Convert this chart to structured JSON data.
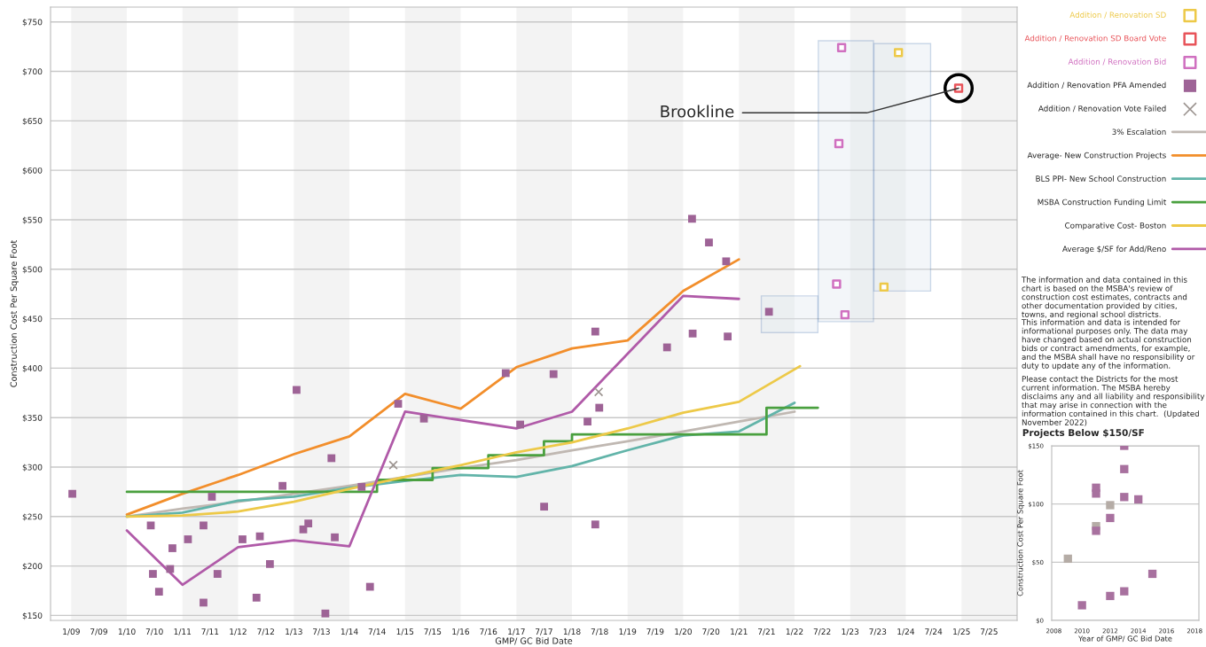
{
  "chart_data": [
    {
      "type": "scatter",
      "xlabel": "GMP/ GC Bid Date",
      "ylabel": "Construction Cost Per Square Foot",
      "xlim": [
        "2008-08-18",
        "2026-01"
      ],
      "ylim": [
        145,
        765
      ],
      "xticks": [
        {
          "value": "2009-01",
          "label": "1/09"
        },
        {
          "value": "2009-07",
          "label": "7/09"
        },
        {
          "value": "2010-01",
          "label": "1/10"
        },
        {
          "value": "2010-07",
          "label": "7/10"
        },
        {
          "value": "2011-01",
          "label": "1/11"
        },
        {
          "value": "2011-07",
          "label": "7/11"
        },
        {
          "value": "2012-01",
          "label": "1/12"
        },
        {
          "value": "2012-07",
          "label": "7/12"
        },
        {
          "value": "2013-01",
          "label": "1/13"
        },
        {
          "value": "2013-07",
          "label": "7/13"
        },
        {
          "value": "2014-01",
          "label": "1/14"
        },
        {
          "value": "2014-07",
          "label": "7/14"
        },
        {
          "value": "2015-01",
          "label": "1/15"
        },
        {
          "value": "2015-07",
          "label": "7/15"
        },
        {
          "value": "2016-01",
          "label": "1/16"
        },
        {
          "value": "2016-07",
          "label": "7/16"
        },
        {
          "value": "2017-01",
          "label": "1/17"
        },
        {
          "value": "2017-07",
          "label": "7/17"
        },
        {
          "value": "2018-01",
          "label": "1/18"
        },
        {
          "value": "2018-07",
          "label": "7/18"
        },
        {
          "value": "2019-01",
          "label": "1/19"
        },
        {
          "value": "2019-07",
          "label": "7/19"
        },
        {
          "value": "2020-01",
          "label": "1/20"
        },
        {
          "value": "2020-07",
          "label": "7/20"
        },
        {
          "value": "2021-01",
          "label": "1/21"
        },
        {
          "value": "2021-07",
          "label": "7/21"
        },
        {
          "value": "2022-01",
          "label": "1/22"
        },
        {
          "value": "2022-07",
          "label": "7/22"
        },
        {
          "value": "2023-01",
          "label": "1/23"
        },
        {
          "value": "2023-07",
          "label": "7/23"
        },
        {
          "value": "2024-01",
          "label": "1/24"
        },
        {
          "value": "2024-07",
          "label": "7/24"
        },
        {
          "value": "2025-01",
          "label": "1/25"
        },
        {
          "value": "2025-07",
          "label": "7/25"
        }
      ],
      "yticks": [
        {
          "value": 150,
          "label": "$150"
        },
        {
          "value": 200,
          "label": "$200"
        },
        {
          "value": 250,
          "label": "$250"
        },
        {
          "value": 300,
          "label": "$300"
        },
        {
          "value": 350,
          "label": "$350"
        },
        {
          "value": 400,
          "label": "$400"
        },
        {
          "value": 450,
          "label": "$450"
        },
        {
          "value": 500,
          "label": "$500"
        },
        {
          "value": 550,
          "label": "$550"
        },
        {
          "value": 600,
          "label": "$600"
        },
        {
          "value": 650,
          "label": "$650"
        },
        {
          "value": 700,
          "label": "$700"
        },
        {
          "value": 750,
          "label": "$750"
        }
      ],
      "grid": "y",
      "legend": "right",
      "bands": [
        {
          "axis": "x",
          "from": "2009-01",
          "to": "2010-01",
          "color": "#f3f3f3"
        },
        {
          "axis": "x",
          "from": "2011-01",
          "to": "2012-01",
          "color": "#f3f3f3"
        },
        {
          "axis": "x",
          "from": "2013-01",
          "to": "2014-01",
          "color": "#f3f3f3"
        },
        {
          "axis": "x",
          "from": "2015-01",
          "to": "2016-01",
          "color": "#f3f3f3"
        },
        {
          "axis": "x",
          "from": "2017-01",
          "to": "2018-01",
          "color": "#f3f3f3"
        },
        {
          "axis": "x",
          "from": "2019-01",
          "to": "2020-01",
          "color": "#f3f3f3"
        },
        {
          "axis": "x",
          "from": "2021-01",
          "to": "2022-01",
          "color": "#f3f3f3"
        },
        {
          "axis": "x",
          "from": "2023-01",
          "to": "2024-01",
          "color": "#f3f3f3"
        },
        {
          "axis": "x",
          "from": "2025-01",
          "to": "2026-01",
          "color": "#f3f3f3"
        }
      ],
      "series": [
        {
          "name": "Addition / Renovation SD",
          "marker": "square",
          "color": "#edc948",
          "x": [
            "2023-11-14",
            "2023-08-11"
          ],
          "values": [
            719,
            482
          ]
        },
        {
          "name": "Addition / Renovation SD Board Vote",
          "marker": "square",
          "color": "#e8545a",
          "x": [
            "2024-12-13"
          ],
          "values": [
            683
          ]
        },
        {
          "name": "Addition / Renovation Bid",
          "marker": "square",
          "color": "#d070c0",
          "x": [
            "2022-11-06",
            "2022-10-19",
            "2022-10-04",
            "2022-11-28"
          ],
          "values": [
            724,
            627,
            485,
            454
          ]
        },
        {
          "name": "Addition / Renovation PFA Amended",
          "marker": "square",
          "color": "#9e6396",
          "x": [
            "2009-01-08",
            "2010-06-07",
            "2010-06-21",
            "2010-07-31",
            "2010-10-12",
            "2010-10-27",
            "2011-02-06",
            "2011-05-19",
            "2011-05-19",
            "2011-07-13",
            "2011-08-19",
            "2012-01-30",
            "2012-05-01",
            "2012-05-23",
            "2012-07-28",
            "2012-10-19",
            "2013-01-19",
            "2013-03-04",
            "2013-04-06",
            "2013-07-27",
            "2013-09-05",
            "2013-09-27",
            "2014-03-22",
            "2014-05-16",
            "2014-11-17",
            "2015-05-05",
            "2016-10-23",
            "2017-01-26",
            "2017-07-02",
            "2017-09-02",
            "2018-04-13",
            "2018-06-03",
            "2018-06-29",
            "2018-06-03",
            "2019-09-17",
            "2020-02-28",
            "2020-06-18",
            "2020-10-09",
            "2020-03-03",
            "2020-10-19",
            "2021-07-17"
          ],
          "values": [
            273,
            241,
            192,
            174,
            197,
            218,
            227,
            241,
            163,
            270,
            192,
            227,
            168,
            230,
            202,
            281,
            378,
            237,
            243,
            152,
            309,
            229,
            280,
            179,
            364,
            349,
            395,
            343,
            260,
            394,
            346,
            437,
            360,
            242,
            421,
            551,
            527,
            508,
            435,
            432,
            457
          ]
        },
        {
          "name": "Addition / Renovation Vote Failed",
          "marker": "cross",
          "color": "#9c9490",
          "x": [
            "2014-10-16",
            "2018-06-25"
          ],
          "values": [
            302,
            376
          ]
        },
        {
          "name": "3% Escalation",
          "type": "line",
          "color": "#c0b8b2",
          "x": [
            "2010-01",
            "2011-01",
            "2012-01",
            "2013-01",
            "2014-01",
            "2015-01",
            "2016-01",
            "2017-01",
            "2018-01",
            "2019-01",
            "2020-01",
            "2021-01",
            "2022-01"
          ],
          "values": [
            250,
            258,
            265,
            273,
            281,
            290,
            299,
            307,
            317,
            326,
            336,
            346,
            356
          ]
        },
        {
          "name": "Average- New Construction Projects",
          "type": "line",
          "color": "#f28e2b",
          "x": [
            "2010-01",
            "2011-01",
            "2012-01",
            "2013-01",
            "2014-01",
            "2015-01",
            "2016-01",
            "2017-01",
            "2018-01",
            "2019-01",
            "2020-01",
            "2021-01"
          ],
          "values": [
            252,
            273,
            292,
            313,
            331,
            374,
            359,
            401,
            420,
            428,
            478,
            510
          ]
        },
        {
          "name": "BLS PPI- New School Construction",
          "type": "line",
          "color": "#62b4a9",
          "x": [
            "2010-01",
            "2011-01",
            "2012-01",
            "2013-01",
            "2014-01",
            "2015-01",
            "2016-01",
            "2017-01",
            "2018-01",
            "2019-01",
            "2020-01",
            "2021-01",
            "2022-01"
          ],
          "values": [
            250,
            254,
            266,
            270,
            279,
            286,
            292,
            290,
            301,
            317,
            332,
            336,
            365
          ]
        },
        {
          "name": "MSBA Construction Funding Limit",
          "type": "step",
          "color": "#4aa03f",
          "x": [
            "2010-01",
            "2014-07",
            "2015-07",
            "2016-07",
            "2017-07",
            "2018-01",
            "2021-07",
            "2022-06-03"
          ],
          "values": [
            275,
            287,
            299,
            312,
            326,
            333,
            360,
            360
          ]
        },
        {
          "name": "Comparative Cost- Boston",
          "type": "line",
          "color": "#edc948",
          "x": [
            "2010-01",
            "2011-01",
            "2012-01",
            "2013-01",
            "2014-01",
            "2015-01",
            "2016-01",
            "2017-01",
            "2018-01",
            "2019-01",
            "2020-01",
            "2021-01",
            "2022-02-06"
          ],
          "values": [
            250,
            251,
            255,
            265,
            278,
            290,
            302,
            315,
            325,
            339,
            355,
            366,
            402
          ]
        },
        {
          "name": "Average $/SF for Add/Reno",
          "type": "line",
          "color": "#b05aa8",
          "x": [
            "2010-01",
            "2011-01",
            "2012-01",
            "2013-01",
            "2014-01",
            "2015-01",
            "2017-01",
            "2018-01",
            "2020-01",
            "2021-01"
          ],
          "values": [
            236,
            181,
            219,
            226,
            220,
            356,
            339,
            356,
            473,
            470
          ]
        }
      ],
      "annotations": [
        {
          "text": "Brookline",
          "x": "2024-12-13",
          "y": 683
        },
        "The information and data contained in this chart is based on the MSBA's review of construction cost estimates, contracts and other documentation provided by cities, towns, and regional school districts.",
        "This information and data is intended for informational purposes only. The data may have changed based on actual construction bids or contract amendments, for example, and the MSBA shall have no responsibility or duty to update any of the information.",
        "Please contact the Districts for the most current information. The MSBA hereby disclaims any and all liability and responsibility that may arise in connection with the information contained in this chart.  (Updated November 2022)"
      ]
    },
    {
      "type": "scatter",
      "title": "Projects Below $150/SF",
      "xlabel": "Year of GMP/ GC Bid Date",
      "ylabel": "Construction Cost Per Square Foot",
      "xlim": [
        2007.85,
        2018.3
      ],
      "ylim": [
        0,
        150
      ],
      "xticks": [
        2008,
        2010,
        2012,
        2014,
        2016,
        2018
      ],
      "yticks": [
        {
          "value": 0,
          "label": "$0"
        },
        {
          "value": 50,
          "label": "$50"
        },
        {
          "value": 100,
          "label": "$100"
        },
        {
          "value": 150,
          "label": "$150"
        }
      ],
      "grid": "y",
      "marker": "square",
      "x": [
        2009,
        2010,
        2011,
        2011,
        2011,
        2011,
        2012,
        2012,
        2012,
        2013,
        2013,
        2013,
        2013,
        2014,
        2015
      ],
      "values": [
        53,
        13,
        114,
        109,
        81,
        77,
        99,
        88,
        21,
        150,
        130,
        106,
        25,
        104,
        40
      ],
      "colors": [
        "#b5aca6",
        "#a8719f",
        "#a8719f",
        "#a8719f",
        "#b5aca6",
        "#a8719f",
        "#b5aca6",
        "#a8719f",
        "#a8719f",
        "#a8719f",
        "#a8719f",
        "#a8719f",
        "#a8719f",
        "#a8719f",
        "#a8719f"
      ]
    }
  ]
}
